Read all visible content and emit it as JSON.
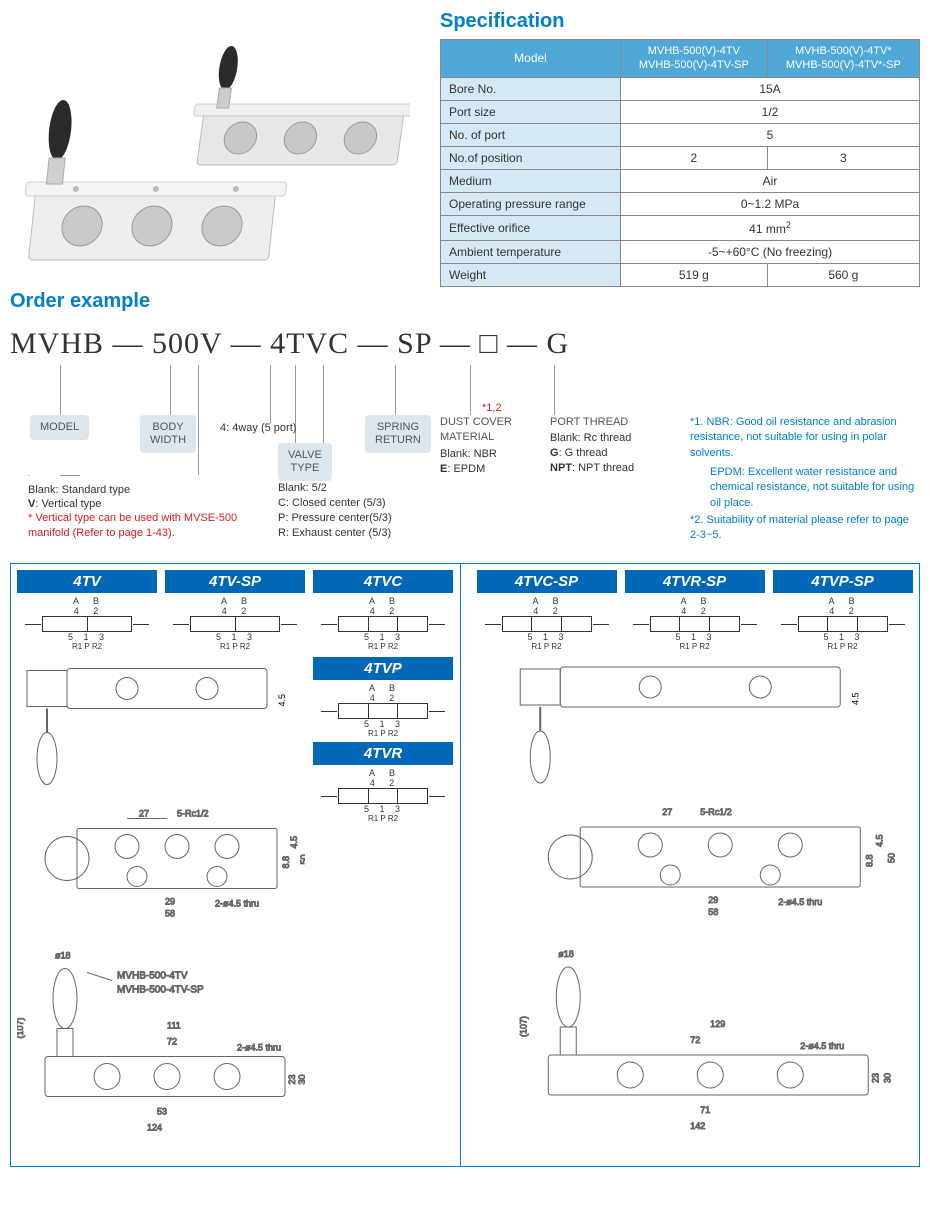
{
  "spec_title": "Specification",
  "spec_table": {
    "header": {
      "label": "Model",
      "col1_l1": "MVHB-500(V)-4TV",
      "col1_l2": "MVHB-500(V)-4TV-SP",
      "col2_l1": "MVHB-500(V)-4TV*",
      "col2_l2": "MVHB-500(V)-4TV*-SP"
    },
    "rows": [
      {
        "label": "Bore No.",
        "span": true,
        "val": "15A"
      },
      {
        "label": "Port size",
        "span": true,
        "val": "1/2"
      },
      {
        "label": "No. of port",
        "span": true,
        "val": "5"
      },
      {
        "label": "No.of position",
        "span": false,
        "v1": "2",
        "v2": "3"
      },
      {
        "label": "Medium",
        "span": true,
        "val": "Air"
      },
      {
        "label": "Operating pressure range",
        "span": true,
        "val": "0~1.2 MPa"
      },
      {
        "label": "Effective orifice",
        "span": true,
        "val": "41 mm",
        "sup": "2"
      },
      {
        "label": "Ambient temperature",
        "span": true,
        "val": "-5~+60°C (No freezing)"
      },
      {
        "label": "Weight",
        "span": false,
        "v1": "519 g",
        "v2": "560 g"
      }
    ]
  },
  "order_title": "Order example",
  "order_code": "MVHB — 500V — 4TVC — SP — □ — G",
  "callouts": {
    "model": "MODEL",
    "body": "BODY\nWIDTH",
    "four": "4: 4way (5 port)",
    "valve": "VALVE\nTYPE",
    "valve_desc": "Blank: 5/2\nC: Closed center (5/3)\nP: Pressure center(5/3)\nR: Exhaust center (5/3)",
    "spring": "SPRING\nRETURN",
    "dust": "DUST COVER\nMATERIAL",
    "dust_star": "*1,2",
    "dust_desc": "Blank: NBR\nE: EPDM",
    "port": "PORT THREAD",
    "port_desc": "Blank: Rc thread\nG: G thread\nNPT: NPT thread",
    "blank_std": "Blank: Standard type",
    "v_vert": "V: Vertical type",
    "v_note": "* Vertical type can be used with MVSE-500\n  manifold (Refer to page 1-43)."
  },
  "notes": {
    "n1": "*1. NBR: Good oil resistance and abrasion resistance, not suitable for using in polar solvents.",
    "n1b": "EPDM: Excellent water resistance and chemical resistance, not suitable for using oil place.",
    "n2": "*2. Suitability of material please refer to page 2-3~5."
  },
  "variants_left": [
    "4TV",
    "4TV-SP",
    "4TVC"
  ],
  "variants_left_col": [
    "4TVP",
    "4TVR"
  ],
  "variants_right": [
    "4TVC-SP",
    "4TVR-SP",
    "4TVP-SP"
  ],
  "symbol_labels": {
    "ab": "A B",
    "top": "4 2",
    "bot": "5 1 3",
    "bot2": "R1 P R2"
  },
  "drawing_dims_left": {
    "d1": "4.5",
    "d2": "27",
    "d3": "5-Rc1/2",
    "d4": "29",
    "d5": "58",
    "d6": "2-ø4.5 thru",
    "d7": "8.8",
    "d8": "4.5",
    "d9": "50",
    "d10": "ø18",
    "d11": "(107)",
    "d12": "MVHB-500-4TV",
    "d13": "MVHB-500-4TV-SP",
    "d14": "111",
    "d15": "72",
    "d16": "2-ø4.5 thru",
    "d17": "23",
    "d18": "30",
    "d19": "53",
    "d20": "124"
  },
  "drawing_dims_right": {
    "d1": "4.5",
    "d2": "27",
    "d3": "5-Rc1/2",
    "d4": "29",
    "d5": "58",
    "d6": "2-ø4.5 thru",
    "d7": "8.8",
    "d8": "4.5",
    "d9": "50",
    "d10": "ø18",
    "d11": "(107)",
    "d14": "129",
    "d15": "72",
    "d16": "2-ø4.5 thru",
    "d17": "23",
    "d18": "30",
    "d19": "71",
    "d20": "142"
  },
  "colors": {
    "brand_blue": "#0080c8",
    "tag_blue": "#0068b7",
    "header_blue": "#4fa8d8",
    "label_blue": "#d4e8f5",
    "callout_bg": "#dde6ed",
    "red": "#d02020",
    "grey": "#888"
  }
}
